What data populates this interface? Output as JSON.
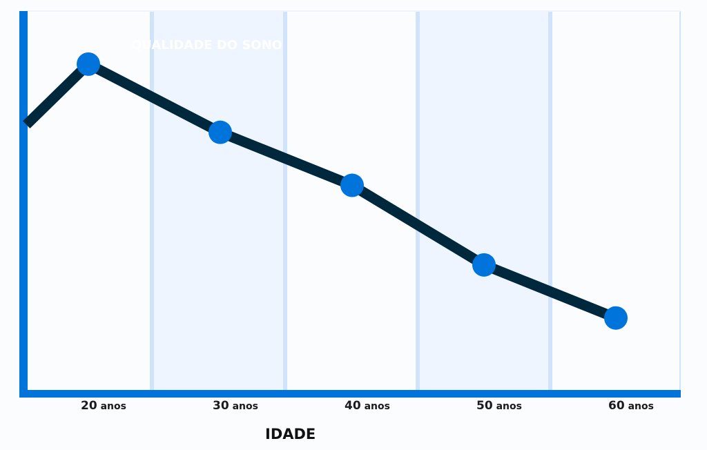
{
  "chart_data": {
    "type": "line",
    "title": "QUALIDADE DO SONO",
    "xlabel": "IDADE",
    "ylabel": "",
    "x": [
      20,
      30,
      40,
      50,
      60
    ],
    "tick_labels": [
      {
        "num": "20",
        "unit": "anos"
      },
      {
        "num": "30",
        "unit": "anos"
      },
      {
        "num": "40",
        "unit": "anos"
      },
      {
        "num": "50",
        "unit": "anos"
      },
      {
        "num": "60",
        "unit": "anos"
      }
    ],
    "values": [
      86,
      68,
      54,
      33,
      19
    ],
    "line_start": {
      "x": 15.3,
      "y": 70
    },
    "xlim": [
      13.5,
      64.5
    ],
    "ylim": [
      0,
      100
    ],
    "y_ticks_shown": false,
    "grid": "alternating vertical bands",
    "colors": {
      "accent": "#0074DB",
      "line": "#00283C",
      "band": "#EEF5FE",
      "band_border": "#CFE3FB"
    }
  }
}
